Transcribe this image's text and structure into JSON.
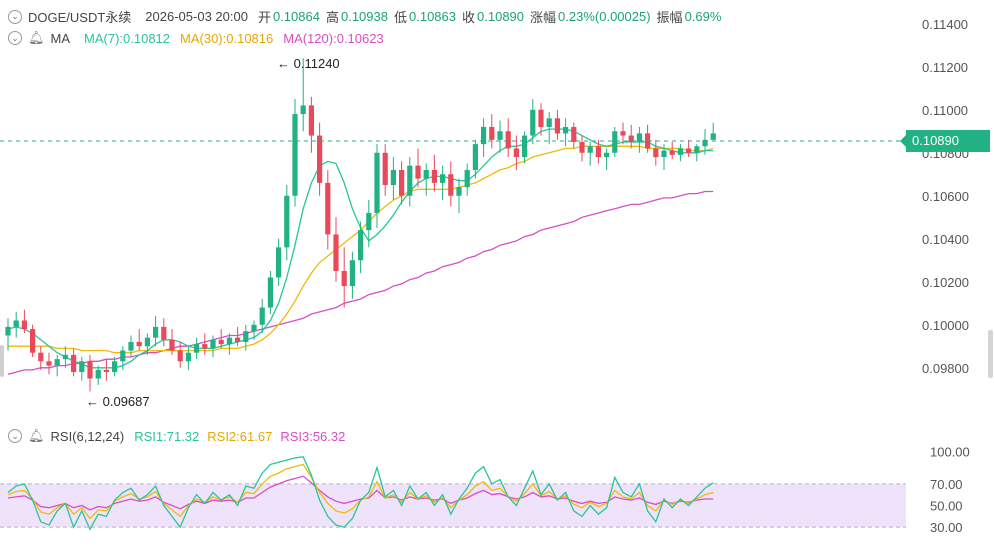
{
  "header": {
    "symbol": "DOGE/USDT永续",
    "datetime": "2026-05-03 20:00",
    "open_label": "开",
    "open_value": "0.10864",
    "high_label": "高",
    "high_value": "0.10938",
    "low_label": "低",
    "low_value": "0.10863",
    "close_label": "收",
    "close_value": "0.10890",
    "change_label": "涨幅",
    "change_value": "0.23%(0.00025)",
    "amp_label": "振幅",
    "amp_value": "0.69%"
  },
  "ma_legend": {
    "label": "MA",
    "ma7": "MA(7):0.10812",
    "ma30": "MA(30):0.10816",
    "ma120": "MA(120):0.10623"
  },
  "rsi_legend": {
    "label": "RSI(6,12,24)",
    "rsi1": "RSI1:71.32",
    "rsi2": "RSI2:61.67",
    "rsi3": "RSI3:56.32"
  },
  "annotations": {
    "high_mark": "0.11240",
    "low_mark": "0.09687",
    "last_price_tag": "0.10890"
  },
  "colors": {
    "up": "#21b183",
    "down": "#e8495b",
    "ma7": "#27c59a",
    "ma30": "#f0b90b",
    "ma120": "#d64fc3",
    "rsi1": "#27c59a",
    "rsi2": "#f0b90b",
    "rsi3": "#d64fc3",
    "rsi_band": "#efe3fb"
  },
  "chart_data": [
    {
      "type": "candlestick",
      "title": "DOGE/USDT永续",
      "y_ticks": [
        "0.11400",
        "0.11200",
        "0.11000",
        "0.10800",
        "0.10600",
        "0.10400",
        "0.10200",
        "0.10000",
        "0.09800"
      ],
      "ylim": [
        0.0965,
        0.1145
      ],
      "last_price": 0.1089,
      "ohlc": [
        [
          0.0995,
          0.1003,
          0.0988,
          0.0999
        ],
        [
          0.0999,
          0.1006,
          0.0994,
          0.1002
        ],
        [
          0.1002,
          0.1007,
          0.0996,
          0.0998
        ],
        [
          0.0998,
          0.1,
          0.0985,
          0.0987
        ],
        [
          0.0987,
          0.099,
          0.0979,
          0.0983
        ],
        [
          0.0983,
          0.0987,
          0.0977,
          0.0981
        ],
        [
          0.0981,
          0.0986,
          0.0976,
          0.0984
        ],
        [
          0.0984,
          0.099,
          0.098,
          0.0986
        ],
        [
          0.0986,
          0.0989,
          0.0976,
          0.0978
        ],
        [
          0.0978,
          0.0985,
          0.0974,
          0.0983
        ],
        [
          0.0983,
          0.0986,
          0.0969,
          0.0975
        ],
        [
          0.0975,
          0.0981,
          0.0972,
          0.0979
        ],
        [
          0.0979,
          0.0984,
          0.0974,
          0.0978
        ],
        [
          0.0978,
          0.0985,
          0.0976,
          0.0983
        ],
        [
          0.0983,
          0.099,
          0.0979,
          0.0988
        ],
        [
          0.0988,
          0.0995,
          0.0985,
          0.0992
        ],
        [
          0.0992,
          0.0998,
          0.0988,
          0.099
        ],
        [
          0.099,
          0.0996,
          0.0986,
          0.0994
        ],
        [
          0.0994,
          0.1004,
          0.099,
          0.0999
        ],
        [
          0.0999,
          0.1003,
          0.099,
          0.0993
        ],
        [
          0.0993,
          0.0998,
          0.0986,
          0.0988
        ],
        [
          0.0988,
          0.0992,
          0.098,
          0.0983
        ],
        [
          0.0983,
          0.099,
          0.0979,
          0.0987
        ],
        [
          0.0987,
          0.0994,
          0.0984,
          0.0991
        ],
        [
          0.0991,
          0.0996,
          0.0986,
          0.0989
        ],
        [
          0.0989,
          0.0995,
          0.0985,
          0.0993
        ],
        [
          0.0993,
          0.0998,
          0.0989,
          0.0991
        ],
        [
          0.0991,
          0.0996,
          0.0986,
          0.0994
        ],
        [
          0.0994,
          0.0999,
          0.099,
          0.0992
        ],
        [
          0.0992,
          0.1,
          0.0988,
          0.0997
        ],
        [
          0.0997,
          0.1002,
          0.0993,
          0.1
        ],
        [
          0.1,
          0.1012,
          0.0996,
          0.1008
        ],
        [
          0.1008,
          0.1025,
          0.1005,
          0.1022
        ],
        [
          0.1022,
          0.104,
          0.1018,
          0.1036
        ],
        [
          0.1036,
          0.1065,
          0.103,
          0.106
        ],
        [
          0.106,
          0.1105,
          0.1055,
          0.1098
        ],
        [
          0.1098,
          0.1124,
          0.109,
          0.1102
        ],
        [
          0.1102,
          0.1106,
          0.108,
          0.1088
        ],
        [
          0.1088,
          0.1094,
          0.106,
          0.1066
        ],
        [
          0.1066,
          0.1072,
          0.1035,
          0.1042
        ],
        [
          0.1042,
          0.105,
          0.102,
          0.1025
        ],
        [
          0.1025,
          0.1036,
          0.1008,
          0.1018
        ],
        [
          0.1018,
          0.1034,
          0.1012,
          0.103
        ],
        [
          0.103,
          0.1048,
          0.1024,
          0.1044
        ],
        [
          0.1044,
          0.1058,
          0.1036,
          0.1052
        ],
        [
          0.1052,
          0.1084,
          0.1045,
          0.108
        ],
        [
          0.108,
          0.1084,
          0.106,
          0.1065
        ],
        [
          0.1065,
          0.1078,
          0.1058,
          0.1072
        ],
        [
          0.1072,
          0.1076,
          0.1056,
          0.106
        ],
        [
          0.106,
          0.1078,
          0.1055,
          0.1074
        ],
        [
          0.1074,
          0.1082,
          0.1064,
          0.1068
        ],
        [
          0.1068,
          0.1075,
          0.106,
          0.1072
        ],
        [
          0.1072,
          0.1079,
          0.1062,
          0.1066
        ],
        [
          0.1066,
          0.1074,
          0.1058,
          0.107
        ],
        [
          0.107,
          0.1076,
          0.1055,
          0.106
        ],
        [
          0.106,
          0.1068,
          0.1052,
          0.1064
        ],
        [
          0.1064,
          0.1075,
          0.106,
          0.1072
        ],
        [
          0.1072,
          0.1086,
          0.1068,
          0.1084
        ],
        [
          0.1084,
          0.1096,
          0.1078,
          0.1092
        ],
        [
          0.1092,
          0.1098,
          0.1082,
          0.1086
        ],
        [
          0.1086,
          0.1095,
          0.108,
          0.109
        ],
        [
          0.109,
          0.1096,
          0.1078,
          0.1082
        ],
        [
          0.1082,
          0.1088,
          0.1072,
          0.1078
        ],
        [
          0.1078,
          0.109,
          0.1075,
          0.1088
        ],
        [
          0.1088,
          0.1105,
          0.1084,
          0.11
        ],
        [
          0.11,
          0.1103,
          0.1088,
          0.1092
        ],
        [
          0.1092,
          0.1099,
          0.1084,
          0.1096
        ],
        [
          0.1096,
          0.11,
          0.1086,
          0.1089
        ],
        [
          0.1089,
          0.1096,
          0.1083,
          0.1092
        ],
        [
          0.1092,
          0.1094,
          0.1082,
          0.1085
        ],
        [
          0.1085,
          0.1088,
          0.1076,
          0.108
        ],
        [
          0.108,
          0.1085,
          0.1074,
          0.1083
        ],
        [
          0.1083,
          0.1086,
          0.1075,
          0.1078
        ],
        [
          0.1078,
          0.1082,
          0.1072,
          0.108
        ],
        [
          0.108,
          0.1092,
          0.1078,
          0.109
        ],
        [
          0.109,
          0.1094,
          0.1084,
          0.1088
        ],
        [
          0.1088,
          0.1093,
          0.1082,
          0.1085
        ],
        [
          0.1085,
          0.1092,
          0.108,
          0.1089
        ],
        [
          0.1089,
          0.1093,
          0.108,
          0.1082
        ],
        [
          0.1082,
          0.1086,
          0.1074,
          0.1078
        ],
        [
          0.1078,
          0.1084,
          0.1072,
          0.1081
        ],
        [
          0.1081,
          0.1085,
          0.1077,
          0.1079
        ],
        [
          0.1079,
          0.1084,
          0.1076,
          0.1082
        ],
        [
          0.1082,
          0.1086,
          0.1078,
          0.108
        ],
        [
          0.108,
          0.1084,
          0.1076,
          0.1083
        ],
        [
          0.1083,
          0.1091,
          0.1079,
          0.1086
        ],
        [
          0.1086,
          0.1094,
          0.1086,
          0.1089
        ]
      ],
      "ma7": [
        0.0998,
        0.0999,
        0.0998,
        0.0996,
        0.0993,
        0.099,
        0.0987,
        0.0985,
        0.0983,
        0.0982,
        0.098,
        0.098,
        0.098,
        0.098,
        0.0981,
        0.0983,
        0.0986,
        0.0988,
        0.0991,
        0.0993,
        0.0993,
        0.0992,
        0.099,
        0.0989,
        0.0989,
        0.0989,
        0.099,
        0.0991,
        0.0992,
        0.0993,
        0.0994,
        0.0997,
        0.1002,
        0.101,
        0.1022,
        0.1037,
        0.1054,
        0.1066,
        0.1074,
        0.1076,
        0.1075,
        0.1066,
        0.1054,
        0.1045,
        0.1039,
        0.1042,
        0.1046,
        0.1051,
        0.1057,
        0.1062,
        0.1066,
        0.1068,
        0.1069,
        0.1069,
        0.1068,
        0.1067,
        0.1067,
        0.107,
        0.1074,
        0.1078,
        0.1081,
        0.1083,
        0.1083,
        0.1084,
        0.1087,
        0.109,
        0.1091,
        0.1091,
        0.1091,
        0.109,
        0.1088,
        0.1086,
        0.1084,
        0.1083,
        0.1084,
        0.1085,
        0.1085,
        0.1085,
        0.1085,
        0.1083,
        0.1082,
        0.1081,
        0.108,
        0.108,
        0.108,
        0.1081,
        0.1081
      ],
      "ma30": [
        0.099,
        0.099,
        0.099,
        0.099,
        0.099,
        0.099,
        0.0989,
        0.0989,
        0.0989,
        0.0988,
        0.0988,
        0.0988,
        0.0988,
        0.0987,
        0.0987,
        0.0987,
        0.0988,
        0.0988,
        0.0988,
        0.0988,
        0.0988,
        0.0988,
        0.0988,
        0.0988,
        0.0988,
        0.0988,
        0.0989,
        0.0989,
        0.0989,
        0.099,
        0.0991,
        0.0993,
        0.0996,
        0.1,
        0.1005,
        0.1011,
        0.1018,
        0.1024,
        0.1029,
        0.1032,
        0.1035,
        0.1038,
        0.1041,
        0.1044,
        0.1048,
        0.1052,
        0.1055,
        0.1058,
        0.106,
        0.1062,
        0.1063,
        0.1063,
        0.1063,
        0.1063,
        0.1063,
        0.1064,
        0.1065,
        0.1066,
        0.1068,
        0.107,
        0.1072,
        0.1073,
        0.1075,
        0.1076,
        0.1078,
        0.1079,
        0.108,
        0.1081,
        0.1082,
        0.1082,
        0.1083,
        0.1083,
        0.1083,
        0.1083,
        0.1083,
        0.1083,
        0.1083,
        0.1083,
        0.1082,
        0.1082,
        0.1082,
        0.1082,
        0.1082,
        0.1081,
        0.1081,
        0.1081,
        0.1082
      ],
      "ma120": [
        0.0977,
        0.0978,
        0.0979,
        0.0979,
        0.098,
        0.098,
        0.0981,
        0.0981,
        0.0982,
        0.0982,
        0.0983,
        0.0983,
        0.0984,
        0.0984,
        0.0985,
        0.0985,
        0.0986,
        0.0987,
        0.0987,
        0.0988,
        0.0989,
        0.099,
        0.099,
        0.0991,
        0.0992,
        0.0993,
        0.0994,
        0.0995,
        0.0995,
        0.0996,
        0.0997,
        0.0998,
        0.0999,
        0.1,
        0.1001,
        0.1002,
        0.1003,
        0.1005,
        0.1006,
        0.1007,
        0.1008,
        0.101,
        0.1011,
        0.1012,
        0.1014,
        0.1015,
        0.1016,
        0.1018,
        0.1019,
        0.1021,
        0.1022,
        0.1024,
        0.1025,
        0.1027,
        0.1028,
        0.1029,
        0.1031,
        0.1032,
        0.1034,
        0.1035,
        0.1037,
        0.1038,
        0.1039,
        0.1041,
        0.1042,
        0.1044,
        0.1045,
        0.1046,
        0.1047,
        0.1048,
        0.105,
        0.1051,
        0.1052,
        0.1053,
        0.1054,
        0.1055,
        0.1056,
        0.1056,
        0.1057,
        0.1058,
        0.1059,
        0.1059,
        0.106,
        0.1061,
        0.1061,
        0.1062,
        0.1062
      ]
    },
    {
      "type": "line",
      "title": "RSI(6,12,24)",
      "y_ticks": [
        "100.00",
        "70.00",
        "50.00",
        "30.00"
      ],
      "ylim": [
        20,
        105
      ],
      "band": [
        30,
        70
      ],
      "series": [
        {
          "name": "RSI1",
          "values": [
            62,
            68,
            70,
            55,
            35,
            32,
            45,
            52,
            30,
            45,
            28,
            42,
            40,
            55,
            62,
            66,
            55,
            60,
            68,
            50,
            40,
            30,
            48,
            60,
            52,
            62,
            55,
            60,
            50,
            68,
            66,
            80,
            88,
            90,
            92,
            94,
            95,
            78,
            55,
            40,
            32,
            30,
            38,
            55,
            62,
            85,
            58,
            64,
            50,
            68,
            56,
            62,
            50,
            60,
            42,
            56,
            66,
            80,
            86,
            70,
            74,
            58,
            50,
            66,
            82,
            60,
            70,
            55,
            62,
            45,
            40,
            50,
            42,
            48,
            76,
            62,
            58,
            70,
            45,
            35,
            56,
            48,
            56,
            50,
            58,
            66,
            71
          ]
        },
        {
          "name": "RSI2",
          "values": [
            60,
            63,
            64,
            56,
            44,
            42,
            48,
            52,
            42,
            48,
            38,
            46,
            45,
            54,
            58,
            61,
            56,
            58,
            63,
            52,
            46,
            40,
            50,
            56,
            53,
            58,
            55,
            58,
            53,
            62,
            61,
            70,
            77,
            80,
            84,
            86,
            88,
            76,
            62,
            52,
            45,
            43,
            47,
            55,
            58,
            72,
            57,
            60,
            53,
            62,
            56,
            59,
            53,
            57,
            48,
            55,
            60,
            68,
            72,
            64,
            66,
            58,
            54,
            61,
            70,
            59,
            63,
            56,
            59,
            51,
            48,
            53,
            49,
            52,
            64,
            58,
            56,
            62,
            50,
            45,
            55,
            51,
            55,
            52,
            56,
            60,
            62
          ]
        },
        {
          "name": "RSI3",
          "values": [
            57,
            58,
            59,
            55,
            49,
            48,
            50,
            52,
            48,
            50,
            46,
            49,
            48,
            52,
            54,
            56,
            54,
            55,
            58,
            53,
            50,
            47,
            51,
            54,
            52,
            55,
            54,
            55,
            53,
            57,
            57,
            62,
            67,
            70,
            73,
            75,
            77,
            71,
            64,
            58,
            54,
            52,
            54,
            56,
            57,
            64,
            57,
            58,
            55,
            58,
            56,
            57,
            55,
            56,
            52,
            55,
            57,
            61,
            64,
            60,
            61,
            58,
            56,
            58,
            62,
            58,
            59,
            56,
            57,
            54,
            52,
            54,
            52,
            53,
            58,
            56,
            55,
            57,
            53,
            51,
            54,
            52,
            54,
            53,
            55,
            56,
            56
          ]
        }
      ]
    }
  ]
}
